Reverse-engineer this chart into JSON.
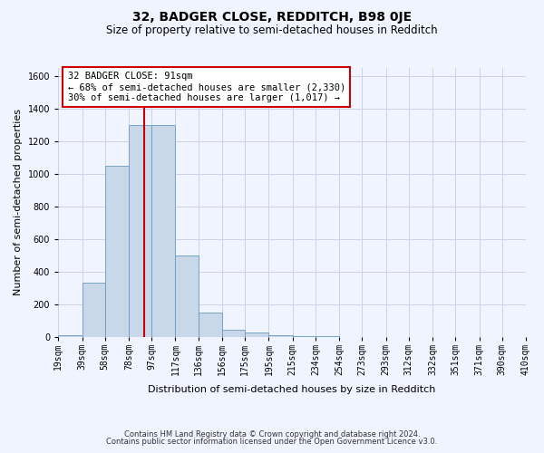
{
  "title": "32, BADGER CLOSE, REDDITCH, B98 0JE",
  "subtitle": "Size of property relative to semi-detached houses in Redditch",
  "xlabel": "Distribution of semi-detached houses by size in Redditch",
  "ylabel": "Number of semi-detached properties",
  "footnote1": "Contains HM Land Registry data © Crown copyright and database right 2024.",
  "footnote2": "Contains public sector information licensed under the Open Government Licence v3.0.",
  "bar_color": "#c8d8e8",
  "bar_edge_color": "#6a9abf",
  "grid_color": "#c8d4e8",
  "vline_color": "#cc0000",
  "vline_x": 91,
  "annotation_text": "32 BADGER CLOSE: 91sqm\n← 68% of semi-detached houses are smaller (2,330)\n30% of semi-detached houses are larger (1,017) →",
  "annotation_box_color": "#ffffff",
  "annotation_box_edge": "#cc0000",
  "bins": [
    19,
    39,
    58,
    78,
    97,
    117,
    136,
    156,
    175,
    195,
    215,
    234,
    254,
    273,
    293,
    312,
    332,
    351,
    371,
    390,
    410
  ],
  "bin_labels": [
    "19sqm",
    "39sqm",
    "58sqm",
    "78sqm",
    "97sqm",
    "117sqm",
    "136sqm",
    "156sqm",
    "175sqm",
    "195sqm",
    "215sqm",
    "234sqm",
    "254sqm",
    "273sqm",
    "293sqm",
    "312sqm",
    "332sqm",
    "351sqm",
    "371sqm",
    "390sqm",
    "410sqm"
  ],
  "counts": [
    10,
    330,
    1050,
    1300,
    1300,
    500,
    150,
    45,
    25,
    10,
    5,
    2,
    1,
    0,
    0,
    0,
    0,
    0,
    0,
    0
  ],
  "ylim": [
    0,
    1650
  ],
  "yticks": [
    0,
    200,
    400,
    600,
    800,
    1000,
    1200,
    1400,
    1600
  ],
  "background_color": "#f0f4ff",
  "title_fontsize": 10,
  "subtitle_fontsize": 8.5,
  "axis_label_fontsize": 8,
  "tick_fontsize": 7,
  "annotation_fontsize": 7.5,
  "footnote_fontsize": 6
}
